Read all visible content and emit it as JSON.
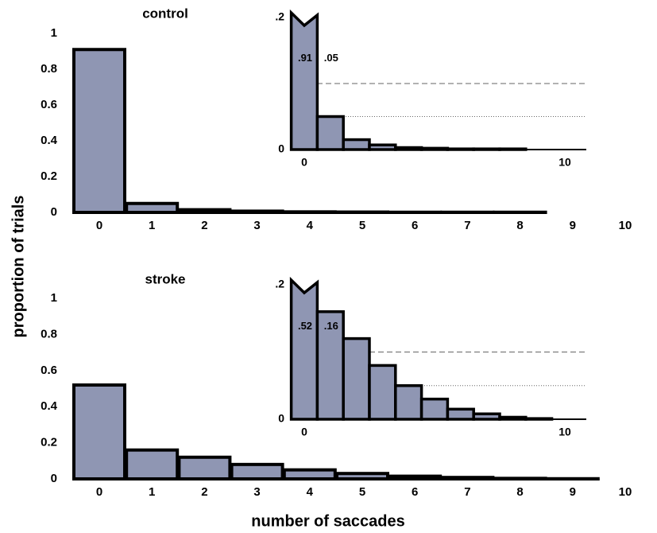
{
  "ylabel": "proportion of trials",
  "xlabel": "number of saccades",
  "chart_data": [
    {
      "type": "bar",
      "title": "control",
      "categories": [
        "0",
        "1",
        "2",
        "3",
        "4",
        "5",
        "6",
        "7",
        "8",
        "9",
        "10"
      ],
      "values": [
        0.91,
        0.05,
        0.015,
        0.007,
        0.003,
        0.002,
        0.001,
        0.001,
        0.001,
        0,
        0
      ],
      "color": "#8f96b3",
      "ylim": [
        0,
        1
      ],
      "yticks": [
        0,
        0.2,
        0.4,
        0.6,
        0.8,
        1
      ],
      "inset": {
        "ylim": [
          0,
          0.2
        ],
        "yticks": [
          0,
          {
            "value": 0.2,
            "label": ".2"
          }
        ],
        "xticks": [
          0,
          10
        ],
        "value_labels": [
          ".91",
          ".05"
        ],
        "reference_lines": [
          {
            "value": 0.1,
            "style": "dashed"
          },
          {
            "value": 0.05,
            "style": "dotted"
          }
        ]
      }
    },
    {
      "type": "bar",
      "title": "stroke",
      "categories": [
        "0",
        "1",
        "2",
        "3",
        "4",
        "5",
        "6",
        "7",
        "8",
        "9",
        "10"
      ],
      "values": [
        0.52,
        0.16,
        0.12,
        0.08,
        0.05,
        0.03,
        0.015,
        0.008,
        0.003,
        0.001,
        0
      ],
      "color": "#8f96b3",
      "ylim": [
        0,
        1
      ],
      "yticks": [
        0,
        0.2,
        0.4,
        0.6,
        0.8,
        1
      ],
      "inset": {
        "ylim": [
          0,
          0.2
        ],
        "yticks": [
          0,
          {
            "value": 0.2,
            "label": ".2"
          }
        ],
        "xticks": [
          0,
          10
        ],
        "value_labels": [
          ".52",
          ".16"
        ],
        "reference_lines": [
          {
            "value": 0.1,
            "style": "dashed"
          },
          {
            "value": 0.05,
            "style": "dotted"
          }
        ]
      }
    }
  ]
}
